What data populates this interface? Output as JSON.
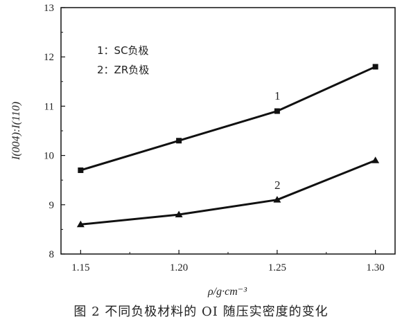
{
  "caption": "图 2   不同负极材料的 OI 随压实密度的变化",
  "chart_data": {
    "type": "line",
    "x": [
      1.15,
      1.2,
      1.25,
      1.3
    ],
    "x_tick_labels": [
      "1.15",
      "1.20",
      "1.25",
      "1.30"
    ],
    "y_ticks": [
      8,
      9,
      10,
      11,
      12,
      13
    ],
    "xlim": [
      1.14,
      1.31
    ],
    "ylim": [
      8,
      13
    ],
    "xlabel": "ρ/g·cm⁻³",
    "ylabel": "I(004):I(110)",
    "grid": false,
    "legend_position": "top-left",
    "legend": [
      "1：SC负极",
      "2：ZR负极"
    ],
    "series": [
      {
        "label": "1",
        "marker": "square",
        "values": [
          9.7,
          10.3,
          10.9,
          11.8
        ]
      },
      {
        "label": "2",
        "marker": "triangle",
        "values": [
          8.6,
          8.8,
          9.1,
          9.9
        ]
      }
    ],
    "line_color": "#111111"
  }
}
